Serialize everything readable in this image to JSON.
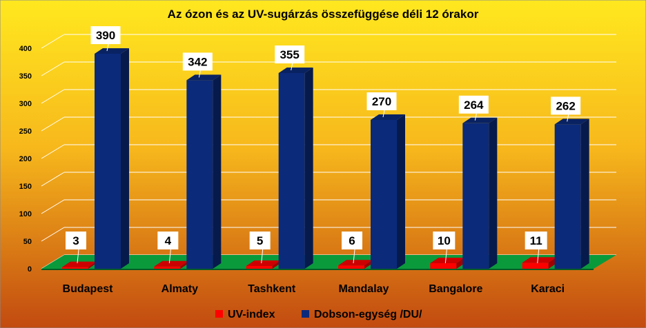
{
  "chart_data": {
    "type": "bar",
    "title": "Az ózon és az UV-sugárzás összefüggése déli 12 órakor",
    "xlabel": "",
    "ylabel": "",
    "categories": [
      "Budapest",
      "Almaty",
      "Tashkent",
      "Mandalay",
      "Bangalore",
      "Karaci"
    ],
    "series": [
      {
        "name": "UV-index",
        "values": [
          3,
          4,
          5,
          6,
          10,
          11
        ],
        "color": "#ff0000"
      },
      {
        "name": "Dobson-egység /DU/",
        "values": [
          390,
          342,
          355,
          270,
          264,
          262
        ],
        "color": "#0b2a7a"
      }
    ],
    "ylim": [
      0,
      400
    ],
    "yticks": [
      0,
      50,
      100,
      150,
      200,
      250,
      300,
      350,
      400
    ],
    "grid": true,
    "legend_position": "bottom",
    "three_d": true,
    "data_labels": true,
    "colors": {
      "background_top": "#ffe81f",
      "background_bottom": "#c24a10",
      "floor": "#0a9a3c",
      "gridline": "#ffffff"
    }
  }
}
